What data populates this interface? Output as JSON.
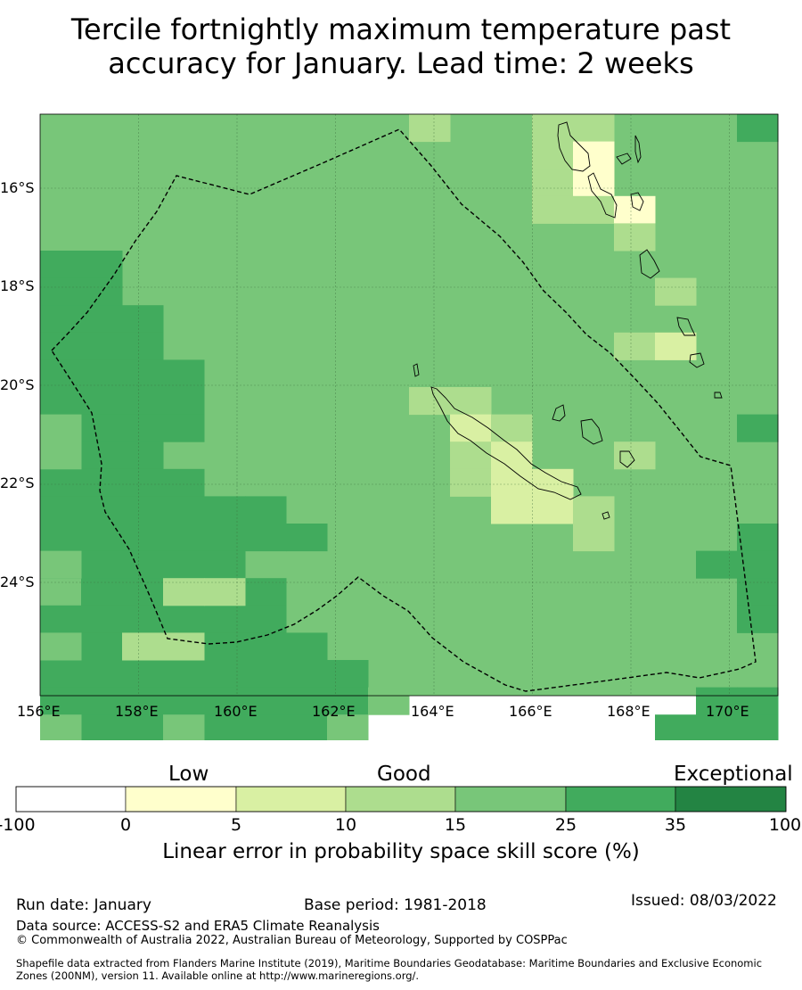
{
  "title_line1": "Tercile fortnightly maximum temperature past",
  "title_line2": "accuracy for January. Lead time: 2 weeks",
  "map": {
    "lon_range": [
      156,
      171
    ],
    "lat_range": [
      -26.25,
      -14.5
    ],
    "x_ticks": [
      "156°E",
      "158°E",
      "160°E",
      "162°E",
      "164°E",
      "166°E",
      "168°E",
      "170°E"
    ],
    "y_ticks": [
      "16°S",
      "18°S",
      "20°S",
      "22°S",
      "24°S"
    ],
    "cell_size_deg": 0.8333
  },
  "legend": {
    "categories": [
      "Low",
      "Good",
      "Exceptional"
    ],
    "ticks": [
      "-100",
      "0",
      "5",
      "10",
      "15",
      "25",
      "35",
      "100"
    ],
    "colors": [
      "#ffffff",
      "#ffffcc",
      "#d9f0a3",
      "#addd8e",
      "#78c679",
      "#41ab5d",
      "#238443"
    ],
    "label": "Linear error in probability space skill score (%)"
  },
  "footer": {
    "run_date": "Run date: January",
    "base_period": "Base period: 1981-2018",
    "issued": "Issued: 08/03/2022",
    "data_source": "Data source: ACCESS-S2 and ERA5 Climate Reanalysis",
    "copyright": "© Commonwealth of Australia 2022, Australian Bureau of Meteorology, Supported by COSPPac",
    "shapefile_line1": "Shapefile data extracted from Flanders Marine Institute (2019), Maritime Boundaries Geodatabase: Maritime Boundaries and Exclusive Economic",
    "shapefile_line2": "Zones (200NM), version 11. Available online at http://www.marineregions.org/."
  }
}
